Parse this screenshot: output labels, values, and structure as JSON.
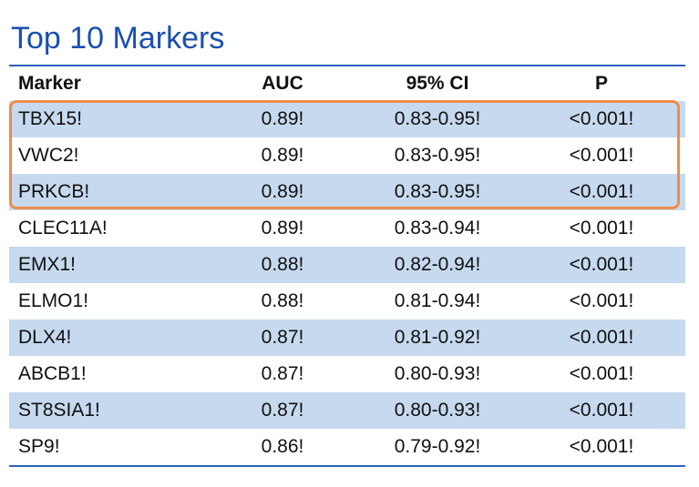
{
  "title": "Top 10 Markers",
  "columns": {
    "marker": "Marker",
    "auc": "AUC",
    "ci": "95% CI",
    "p": "P"
  },
  "rows": [
    {
      "marker": "TBX15!",
      "auc": "0.89!",
      "ci": "0.83-0.95!",
      "p": "<0.001!"
    },
    {
      "marker": "VWC2!",
      "auc": "0.89!",
      "ci": "0.83-0.95!",
      "p": "<0.001!"
    },
    {
      "marker": "PRKCB!",
      "auc": "0.89!",
      "ci": "0.83-0.95!",
      "p": "<0.001!"
    },
    {
      "marker": "CLEC11A!",
      "auc": "0.89!",
      "ci": "0.83-0.94!",
      "p": "<0.001!"
    },
    {
      "marker": "EMX1!",
      "auc": "0.88!",
      "ci": "0.82-0.94!",
      "p": "<0.001!"
    },
    {
      "marker": "ELMO1!",
      "auc": "0.88!",
      "ci": "0.81-0.94!",
      "p": "<0.001!"
    },
    {
      "marker": "DLX4!",
      "auc": "0.87!",
      "ci": "0.81-0.92!",
      "p": "<0.001!"
    },
    {
      "marker": "ABCB1!",
      "auc": "0.87!",
      "ci": "0.80-0.93!",
      "p": "<0.001!"
    },
    {
      "marker": "ST8SIA1!",
      "auc": "0.87!",
      "ci": "0.80-0.93!",
      "p": "<0.001!"
    },
    {
      "marker": "SP9!",
      "auc": "0.86!",
      "ci": "0.79-0.92!",
      "p": "<0.001!"
    }
  ],
  "colors": {
    "title": "#1b4fb0",
    "rule": "#2b63b8",
    "shaded_row": "#c6d9ef",
    "highlight_border": "#ef8c4a"
  }
}
